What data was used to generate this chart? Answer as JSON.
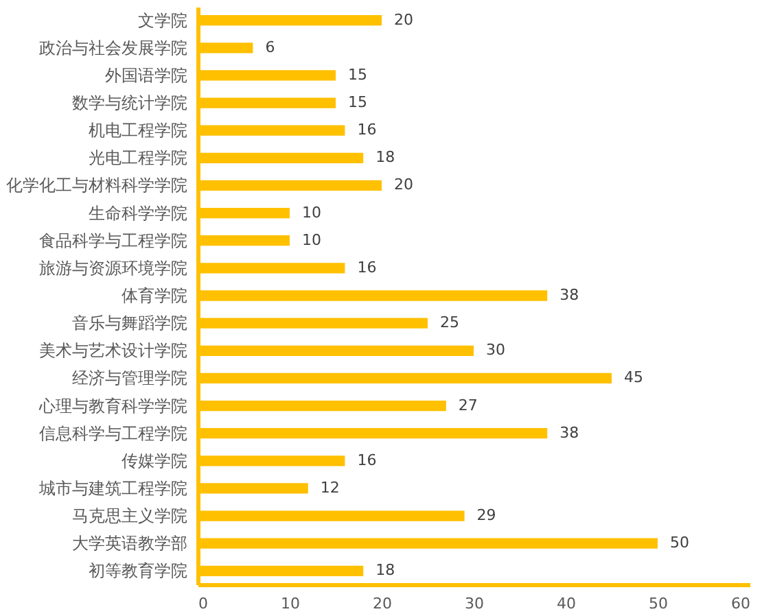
{
  "chart_data": {
    "type": "bar",
    "orientation": "horizontal",
    "categories": [
      "文学院",
      "政治与社会发展学院",
      "外国语学院",
      "数学与统计学院",
      "机电工程学院",
      "光电工程学院",
      "化学化工与材料科学学院",
      "生命科学学院",
      "食品科学与工程学院",
      "旅游与资源环境学院",
      "体育学院",
      "音乐与舞蹈学院",
      "美术与艺术设计学院",
      "经济与管理学院",
      "心理与教育科学学院",
      "信息科学与工程学院",
      "传媒学院",
      "城市与建筑工程学院",
      "马克思主义学院",
      "大学英语教学部",
      "初等教育学院"
    ],
    "values": [
      20,
      6,
      15,
      15,
      16,
      18,
      20,
      10,
      10,
      16,
      38,
      25,
      30,
      45,
      27,
      38,
      16,
      12,
      29,
      50,
      18
    ],
    "color": "#ffc000",
    "xlim": [
      0,
      60
    ],
    "xticks": [
      0,
      10,
      20,
      30,
      40,
      50,
      60
    ],
    "data_labels": true,
    "grid": false
  }
}
